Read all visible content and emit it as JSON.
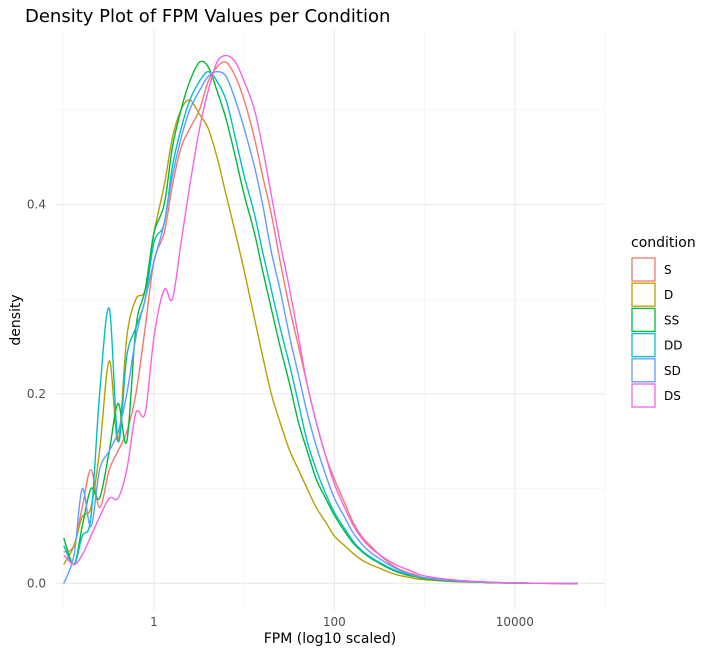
{
  "chart_data": {
    "type": "line",
    "title": "Density Plot of FPM Values per Condition",
    "xlabel": "FPM (log10 scaled)",
    "ylabel": "density",
    "x_scale": "log10",
    "xlim": [
      0.08,
      100000
    ],
    "ylim": [
      -0.028,
      0.584
    ],
    "x_ticks": [
      1,
      100,
      10000
    ],
    "x_tick_labels": [
      "1",
      "100",
      "10000"
    ],
    "y_ticks": [
      0.0,
      0.2,
      0.4
    ],
    "y_tick_labels": [
      "0.0",
      "0.2",
      "0.4"
    ],
    "grid": true,
    "legend": {
      "title": "condition",
      "position": "right"
    },
    "series": [
      {
        "name": "S",
        "color": "#F8766D",
        "x": [
          0.1,
          0.13,
          0.16,
          0.2,
          0.25,
          0.32,
          0.4,
          0.5,
          0.63,
          0.8,
          1.0,
          1.3,
          1.6,
          2.0,
          2.5,
          3.2,
          4.0,
          5.0,
          6.3,
          8,
          10,
          13,
          16,
          20,
          25,
          32,
          40,
          50,
          63,
          80,
          100,
          130,
          160,
          200,
          250,
          320,
          400,
          500,
          630,
          800,
          1000,
          2000,
          5000,
          10000,
          20000,
          50000
        ],
        "y": [
          0.033,
          0.04,
          0.08,
          0.12,
          0.08,
          0.12,
          0.14,
          0.16,
          0.2,
          0.27,
          0.34,
          0.37,
          0.42,
          0.46,
          0.48,
          0.5,
          0.53,
          0.545,
          0.55,
          0.535,
          0.51,
          0.47,
          0.43,
          0.39,
          0.34,
          0.29,
          0.25,
          0.21,
          0.17,
          0.135,
          0.11,
          0.085,
          0.065,
          0.05,
          0.04,
          0.03,
          0.022,
          0.016,
          0.012,
          0.009,
          0.006,
          0.003,
          0.001,
          0.0005,
          0.0002,
          0.0
        ]
      },
      {
        "name": "D",
        "color": "#B79F00",
        "x": [
          0.1,
          0.13,
          0.16,
          0.2,
          0.25,
          0.32,
          0.4,
          0.5,
          0.63,
          0.8,
          1.0,
          1.3,
          1.6,
          2.0,
          2.5,
          3.2,
          4.0,
          5.0,
          6.3,
          8,
          10,
          13,
          16,
          20,
          25,
          32,
          40,
          50,
          63,
          80,
          100,
          130,
          160,
          200,
          250,
          320,
          400,
          500,
          630,
          800,
          1000,
          2000,
          5000,
          10000,
          20000,
          50000
        ],
        "y": [
          0.02,
          0.04,
          0.07,
          0.08,
          0.14,
          0.235,
          0.15,
          0.26,
          0.3,
          0.31,
          0.37,
          0.42,
          0.47,
          0.5,
          0.51,
          0.495,
          0.48,
          0.45,
          0.41,
          0.37,
          0.33,
          0.28,
          0.24,
          0.2,
          0.17,
          0.14,
          0.12,
          0.1,
          0.08,
          0.065,
          0.05,
          0.04,
          0.032,
          0.025,
          0.02,
          0.016,
          0.012,
          0.009,
          0.007,
          0.005,
          0.004,
          0.002,
          0.001,
          0.0005,
          0.0002,
          0.0
        ]
      },
      {
        "name": "SS",
        "color": "#00BA38",
        "x": [
          0.1,
          0.13,
          0.16,
          0.2,
          0.25,
          0.32,
          0.4,
          0.5,
          0.63,
          0.8,
          1.0,
          1.3,
          1.6,
          2.0,
          2.5,
          3.2,
          4.0,
          5.0,
          6.3,
          8,
          10,
          13,
          16,
          20,
          25,
          32,
          40,
          50,
          63,
          80,
          100,
          130,
          160,
          200,
          250,
          320,
          400,
          500,
          630,
          800,
          1000,
          2000,
          5000,
          10000,
          20000,
          50000
        ],
        "y": [
          0.048,
          0.02,
          0.06,
          0.1,
          0.09,
          0.14,
          0.19,
          0.15,
          0.27,
          0.31,
          0.37,
          0.4,
          0.46,
          0.5,
          0.53,
          0.55,
          0.545,
          0.52,
          0.49,
          0.45,
          0.41,
          0.37,
          0.33,
          0.29,
          0.25,
          0.21,
          0.17,
          0.14,
          0.11,
          0.09,
          0.072,
          0.055,
          0.043,
          0.034,
          0.027,
          0.021,
          0.016,
          0.012,
          0.009,
          0.007,
          0.005,
          0.0025,
          0.001,
          0.0005,
          0.0002,
          0.0
        ]
      },
      {
        "name": "DD",
        "color": "#00BFC4",
        "x": [
          0.1,
          0.13,
          0.16,
          0.2,
          0.25,
          0.32,
          0.4,
          0.5,
          0.63,
          0.8,
          1.0,
          1.3,
          1.6,
          2.0,
          2.5,
          3.2,
          4.0,
          5.0,
          6.3,
          8,
          10,
          13,
          16,
          20,
          25,
          32,
          40,
          50,
          63,
          80,
          100,
          130,
          160,
          200,
          250,
          320,
          400,
          500,
          630,
          800,
          1000,
          2000,
          5000,
          10000,
          20000,
          50000
        ],
        "y": [
          0.04,
          0.02,
          0.05,
          0.07,
          0.2,
          0.29,
          0.15,
          0.24,
          0.27,
          0.3,
          0.36,
          0.38,
          0.44,
          0.48,
          0.51,
          0.53,
          0.54,
          0.53,
          0.51,
          0.47,
          0.43,
          0.39,
          0.35,
          0.31,
          0.27,
          0.23,
          0.19,
          0.15,
          0.12,
          0.095,
          0.075,
          0.058,
          0.045,
          0.035,
          0.028,
          0.022,
          0.017,
          0.013,
          0.01,
          0.008,
          0.006,
          0.003,
          0.0012,
          0.0005,
          0.0002,
          0.0
        ]
      },
      {
        "name": "SD",
        "color": "#619CFF",
        "x": [
          0.1,
          0.13,
          0.16,
          0.2,
          0.25,
          0.32,
          0.4,
          0.5,
          0.63,
          0.8,
          1.0,
          1.3,
          1.6,
          2.0,
          2.5,
          3.2,
          4.0,
          5.0,
          6.3,
          8,
          10,
          13,
          16,
          20,
          25,
          32,
          40,
          50,
          63,
          80,
          100,
          130,
          160,
          200,
          250,
          320,
          400,
          500,
          630,
          800,
          1000,
          2000,
          5000,
          10000,
          20000,
          50000
        ],
        "y": [
          0.0,
          0.03,
          0.1,
          0.06,
          0.12,
          0.14,
          0.16,
          0.2,
          0.26,
          0.3,
          0.34,
          0.38,
          0.43,
          0.47,
          0.5,
          0.52,
          0.535,
          0.54,
          0.535,
          0.51,
          0.48,
          0.44,
          0.4,
          0.35,
          0.31,
          0.26,
          0.22,
          0.18,
          0.145,
          0.115,
          0.09,
          0.07,
          0.054,
          0.042,
          0.033,
          0.026,
          0.02,
          0.015,
          0.011,
          0.008,
          0.006,
          0.003,
          0.0012,
          0.0005,
          0.0002,
          0.0
        ]
      },
      {
        "name": "DS",
        "color": "#F564E3",
        "x": [
          0.1,
          0.13,
          0.16,
          0.2,
          0.25,
          0.32,
          0.4,
          0.5,
          0.63,
          0.8,
          1.0,
          1.3,
          1.6,
          2.0,
          2.5,
          3.2,
          4.0,
          5.0,
          6.3,
          8,
          10,
          13,
          16,
          20,
          25,
          32,
          40,
          50,
          63,
          80,
          100,
          130,
          160,
          200,
          250,
          320,
          400,
          500,
          630,
          800,
          1000,
          2000,
          5000,
          10000,
          20000,
          50000
        ],
        "y": [
          0.03,
          0.02,
          0.03,
          0.05,
          0.07,
          0.09,
          0.09,
          0.12,
          0.18,
          0.18,
          0.26,
          0.31,
          0.3,
          0.36,
          0.42,
          0.48,
          0.52,
          0.55,
          0.557,
          0.55,
          0.53,
          0.5,
          0.46,
          0.41,
          0.36,
          0.31,
          0.26,
          0.21,
          0.17,
          0.135,
          0.105,
          0.08,
          0.062,
          0.048,
          0.038,
          0.03,
          0.024,
          0.019,
          0.015,
          0.011,
          0.008,
          0.004,
          0.0015,
          0.0006,
          0.0002,
          0.0
        ]
      }
    ]
  }
}
